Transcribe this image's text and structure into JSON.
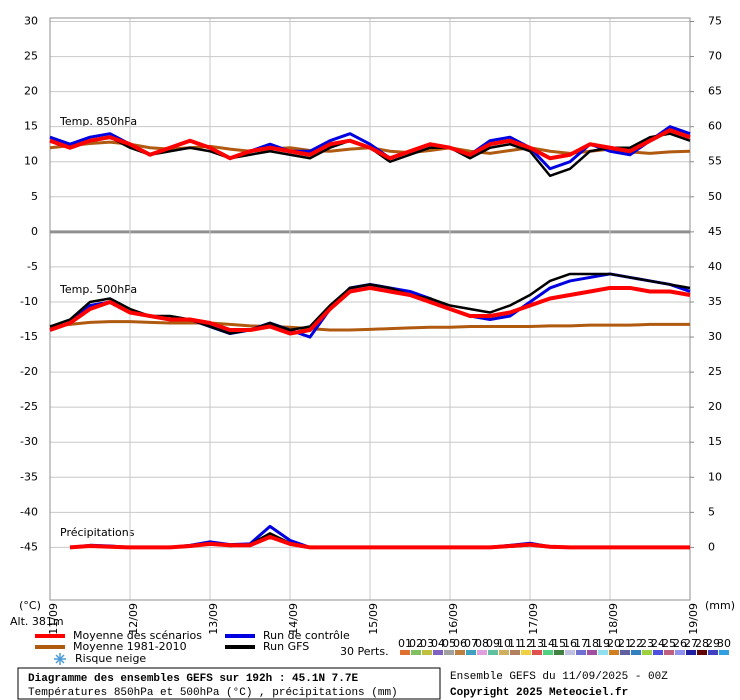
{
  "chart_data": {
    "type": "line",
    "title": "Diagramme des ensembles GEFS sur 192h : 45.1N 7.7E",
    "subtitle": "Températures 850hPa et 500hPa (°C) , précipitations (mm)",
    "run_info": "Ensemble GEFS du 11/09/2025 - 00Z",
    "copyright": "Copyright 2025 Meteociel.fr",
    "altitude": "Alt. 381m",
    "y_label": "(°C)",
    "y2_label": "(mm)",
    "panels": [
      "Temp. 850hPa",
      "Temp. 500hPa",
      "Précipitations"
    ],
    "snow_legend": "Risque neige",
    "perturbations_label": "30 Perts.",
    "x": [
      0,
      6,
      12,
      18,
      24,
      30,
      36,
      42,
      48,
      54,
      60,
      66,
      72,
      78,
      84,
      90,
      96,
      102,
      108,
      114,
      120,
      126,
      132,
      138,
      144,
      150,
      156,
      162,
      168,
      174,
      180,
      186,
      192
    ],
    "xlim": [
      0,
      192
    ],
    "xticks": [
      {
        "value": 0,
        "label": "11/09"
      },
      {
        "value": 24,
        "label": "12/09"
      },
      {
        "value": 48,
        "label": "13/09"
      },
      {
        "value": 72,
        "label": "14/09"
      },
      {
        "value": 96,
        "label": "15/09"
      },
      {
        "value": 120,
        "label": "16/09"
      },
      {
        "value": 144,
        "label": "17/09"
      },
      {
        "value": 168,
        "label": "18/09"
      },
      {
        "value": 192,
        "label": "19/09"
      }
    ],
    "ylim": [
      -52.5,
      30.5
    ],
    "yticks": [
      30,
      25,
      20,
      15,
      10,
      5,
      0,
      -5,
      -10,
      -15,
      -20,
      -25,
      -30,
      -35,
      -40,
      -45
    ],
    "y2lim": [
      -7.5,
      75.5
    ],
    "y2ticks": [
      75,
      70,
      65,
      60,
      55,
      50,
      45,
      40,
      35,
      30,
      25,
      20,
      15,
      10,
      5,
      0
    ],
    "grid": true,
    "series": [
      {
        "name": "Moyenne 1981-2010",
        "color": "#b05a10",
        "t850": [
          12,
          12.3,
          12.6,
          12.8,
          12.5,
          12,
          11.8,
          12,
          12.2,
          11.8,
          11.5,
          11.8,
          12,
          11.6,
          11.5,
          11.8,
          12,
          11.5,
          11.3,
          11.6,
          12,
          11.5,
          11.2,
          11.6,
          12,
          11.5,
          11.2,
          11.5,
          11.8,
          11.4,
          11.2,
          11.4,
          11.5
        ],
        "t500": [
          -13.5,
          -13.2,
          -12.9,
          -12.8,
          -12.8,
          -12.9,
          -13,
          -13,
          -13,
          -13.2,
          -13.4,
          -13.5,
          -13.6,
          -13.8,
          -14,
          -14,
          -13.9,
          -13.8,
          -13.7,
          -13.6,
          -13.6,
          -13.5,
          -13.5,
          -13.5,
          -13.5,
          -13.4,
          -13.4,
          -13.3,
          -13.3,
          -13.3,
          -13.2,
          -13.2,
          -13.2
        ]
      },
      {
        "name": "Run de contrôle",
        "color": "#0000e0",
        "t850": [
          13.5,
          12.5,
          13.5,
          14,
          12.5,
          11,
          12,
          13,
          12,
          10.5,
          11.5,
          12.5,
          11.5,
          11.5,
          13,
          14,
          12.5,
          10.5,
          11.5,
          12.5,
          12,
          11,
          13,
          13.5,
          12,
          9,
          10,
          12.5,
          11.5,
          11,
          13,
          15,
          14
        ],
        "t500": [
          -14,
          -13,
          -10.5,
          -10,
          -11.5,
          -12,
          -12.5,
          -12.5,
          -13.5,
          -14.5,
          -14,
          -13,
          -14,
          -15,
          -11,
          -8,
          -7.5,
          -8,
          -8.5,
          -9.5,
          -11,
          -12,
          -12.5,
          -12,
          -10,
          -8,
          -7,
          -6.5,
          -6,
          -6.5,
          -7,
          -7.5,
          -8.5
        ],
        "precip": [
          null,
          0,
          0.3,
          0.2,
          0,
          0,
          0,
          0.3,
          0.8,
          0.4,
          0.5,
          3,
          1,
          0,
          0,
          0,
          0,
          0,
          0,
          0,
          0,
          0,
          0,
          0.3,
          0.6,
          0.1,
          0,
          0,
          0,
          0,
          0,
          0,
          0
        ]
      },
      {
        "name": "Run GFS",
        "color": "#000000",
        "t850": [
          13,
          12,
          13,
          13.5,
          12,
          11,
          11.5,
          12,
          11.5,
          10.5,
          11,
          11.5,
          11,
          10.5,
          12,
          13,
          12,
          10,
          11,
          12,
          12,
          10.5,
          12,
          12.5,
          11.5,
          8,
          9,
          11.5,
          12,
          12,
          13.5,
          14,
          13
        ],
        "t500": [
          -13.5,
          -12.5,
          -10,
          -9.5,
          -11,
          -12,
          -12,
          -12.5,
          -13.5,
          -14.5,
          -14,
          -13,
          -14,
          -13.5,
          -10.5,
          -8,
          -7.5,
          -8,
          -9,
          -9.5,
          -10.5,
          -11,
          -11.5,
          -10.5,
          -9,
          -7,
          -6,
          -6,
          -6,
          -6.5,
          -7,
          -7.5,
          -8
        ],
        "precip": [
          null,
          0,
          0.2,
          0.1,
          0,
          0,
          0,
          0.1,
          0.6,
          0.2,
          0.4,
          2,
          0.6,
          0,
          0,
          0,
          0,
          0,
          0,
          0,
          0,
          0,
          0,
          0.1,
          0.3,
          0,
          0,
          0,
          0,
          0,
          0,
          0,
          0
        ]
      },
      {
        "name": "Moyenne des scénarios",
        "color": "#ff0000",
        "t850": [
          13,
          12,
          13,
          13.5,
          12.5,
          11,
          12,
          13,
          12,
          10.5,
          11.5,
          12,
          11.5,
          11,
          12.5,
          13,
          12,
          10.5,
          11.5,
          12.5,
          12,
          11,
          12.5,
          13,
          12,
          10.5,
          11,
          12.5,
          12,
          11.5,
          13,
          14.5,
          13.5
        ],
        "t500": [
          -14,
          -13,
          -11,
          -10,
          -11.5,
          -12,
          -12.5,
          -12.5,
          -13,
          -14,
          -14,
          -13.5,
          -14.5,
          -14,
          -11,
          -8.5,
          -8,
          -8.5,
          -9,
          -10,
          -11,
          -12,
          -12,
          -11.5,
          -10.5,
          -9.5,
          -9,
          -8.5,
          -8,
          -8,
          -8.5,
          -8.5,
          -9
        ],
        "precip": [
          null,
          0,
          0.2,
          0.1,
          0,
          0,
          0,
          0.2,
          0.5,
          0.3,
          0.3,
          1.5,
          0.5,
          0,
          0,
          0,
          0,
          0,
          0,
          0,
          0,
          0,
          0,
          0.2,
          0.4,
          0.1,
          0,
          0,
          0,
          0,
          0,
          0,
          0
        ]
      }
    ],
    "perturbations": [
      {
        "name": "01",
        "color": "#e07030"
      },
      {
        "name": "02",
        "color": "#80c060"
      },
      {
        "name": "03",
        "color": "#c0c040"
      },
      {
        "name": "04",
        "color": "#8060c0"
      },
      {
        "name": "05",
        "color": "#a0a0a0"
      },
      {
        "name": "06",
        "color": "#c08040"
      },
      {
        "name": "07",
        "color": "#40a0c0"
      },
      {
        "name": "08",
        "color": "#e0a0e0"
      },
      {
        "name": "09",
        "color": "#60c0a0"
      },
      {
        "name": "10",
        "color": "#d0b060"
      },
      {
        "name": "11",
        "color": "#b08060"
      },
      {
        "name": "12",
        "color": "#f0d040"
      },
      {
        "name": "13",
        "color": "#e05050"
      },
      {
        "name": "14",
        "color": "#50d080"
      },
      {
        "name": "15",
        "color": "#408040"
      },
      {
        "name": "16",
        "color": "#c0c0e0"
      },
      {
        "name": "17",
        "color": "#7070d0"
      },
      {
        "name": "18",
        "color": "#a050a0"
      },
      {
        "name": "19",
        "color": "#90e0f0"
      },
      {
        "name": "20",
        "color": "#d08020"
      },
      {
        "name": "21",
        "color": "#6060a0"
      },
      {
        "name": "22",
        "color": "#3080c0"
      },
      {
        "name": "23",
        "color": "#a0d040"
      },
      {
        "name": "24",
        "color": "#5050e0"
      },
      {
        "name": "25",
        "color": "#c06080"
      },
      {
        "name": "26",
        "color": "#9090f0"
      },
      {
        "name": "27",
        "color": "#2020a0"
      },
      {
        "name": "28",
        "color": "#600000"
      },
      {
        "name": "29",
        "color": "#4040c0"
      },
      {
        "name": "30",
        "color": "#30a0e0"
      }
    ]
  }
}
